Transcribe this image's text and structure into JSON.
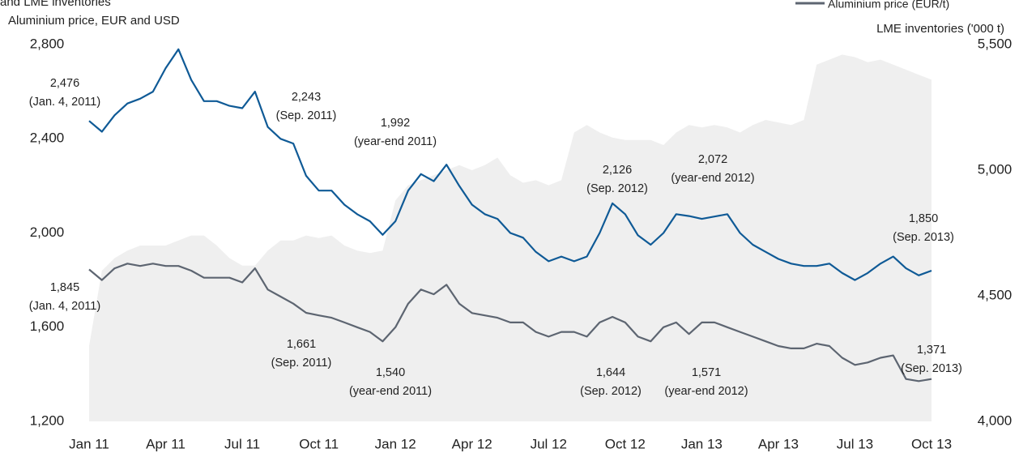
{
  "chart_data": {
    "type": "line",
    "title": "and LME inventories",
    "y_label": "Aluminium price, EUR and USD",
    "y2_label": "LME inventories ('000 t)",
    "categories": [
      "Jan 11",
      null,
      null,
      null,
      null,
      null,
      "Apr 11",
      null,
      null,
      null,
      null,
      null,
      "Jul 11",
      null,
      null,
      null,
      null,
      null,
      "Oct 11",
      null,
      null,
      null,
      null,
      null,
      "Jan 12",
      null,
      null,
      null,
      null,
      null,
      "Apr 12",
      null,
      null,
      null,
      null,
      null,
      "Jul 12",
      null,
      null,
      null,
      null,
      null,
      "Oct 12",
      null,
      null,
      null,
      null,
      null,
      "Jan 13",
      null,
      null,
      null,
      null,
      null,
      "Apr 13",
      null,
      null,
      null,
      null,
      null,
      "Jul 13",
      null,
      null,
      null,
      null,
      null,
      "Oct 13"
    ],
    "ylim": [
      1200,
      2800
    ],
    "yticks": [
      {
        "value": 1200,
        "label": "1,200"
      },
      {
        "value": 1600,
        "label": "1,600"
      },
      {
        "value": 2000,
        "label": "2,000"
      },
      {
        "value": 2400,
        "label": "2,400"
      },
      {
        "value": 2800,
        "label": "2,800"
      }
    ],
    "y2lim": [
      4000,
      5500
    ],
    "y2ticks": [
      {
        "value": 4000,
        "label": "4,000"
      },
      {
        "value": 4500,
        "label": "4,500"
      },
      {
        "value": 5000,
        "label": "5,000"
      },
      {
        "value": 5500,
        "label": "5,500"
      }
    ],
    "series": [
      {
        "type": "area",
        "axis": "y2",
        "color": "#efefef",
        "values": [
          4300,
          4600,
          4650,
          4680,
          4700,
          4700,
          4700,
          4720,
          4740,
          4740,
          4700,
          4650,
          4620,
          4620,
          4680,
          4720,
          4720,
          4740,
          4730,
          4740,
          4700,
          4680,
          4670,
          4680,
          4880,
          4940,
          4960,
          4980,
          5000,
          5020,
          5000,
          5020,
          5050,
          4980,
          4950,
          4960,
          4940,
          4960,
          5150,
          5180,
          5150,
          5130,
          5120,
          5120,
          5120,
          5100,
          5150,
          5180,
          5170,
          5180,
          5170,
          5150,
          5180,
          5200,
          5190,
          5180,
          5200,
          5420,
          5440,
          5460,
          5450,
          5430,
          5440,
          5420,
          5400,
          5380,
          5360
        ]
      },
      {
        "name": "Aluminium price (EUR/t)",
        "color": "#5d6571",
        "values": [
          1845,
          1800,
          1850,
          1870,
          1860,
          1870,
          1860,
          1860,
          1840,
          1810,
          1810,
          1810,
          1790,
          1850,
          1760,
          1730,
          1700,
          1661,
          1650,
          1640,
          1620,
          1600,
          1580,
          1540,
          1600,
          1700,
          1760,
          1740,
          1780,
          1700,
          1660,
          1650,
          1640,
          1620,
          1620,
          1580,
          1560,
          1580,
          1580,
          1560,
          1620,
          1644,
          1620,
          1560,
          1540,
          1600,
          1620,
          1571,
          1620,
          1620,
          1600,
          1580,
          1560,
          1540,
          1520,
          1510,
          1510,
          1530,
          1520,
          1470,
          1440,
          1450,
          1470,
          1480,
          1380,
          1371,
          1380
        ]
      },
      {
        "color": "#0f5a96",
        "values": [
          2476,
          2430,
          2500,
          2550,
          2570,
          2600,
          2700,
          2780,
          2650,
          2560,
          2560,
          2540,
          2530,
          2600,
          2450,
          2400,
          2380,
          2243,
          2180,
          2180,
          2120,
          2080,
          2050,
          1992,
          2050,
          2180,
          2250,
          2220,
          2290,
          2200,
          2120,
          2080,
          2060,
          2000,
          1980,
          1920,
          1880,
          1900,
          1880,
          1900,
          2000,
          2126,
          2080,
          1990,
          1950,
          2000,
          2080,
          2072,
          2060,
          2070,
          2080,
          2000,
          1950,
          1920,
          1890,
          1870,
          1860,
          1860,
          1870,
          1830,
          1800,
          1830,
          1870,
          1900,
          1850,
          1820,
          1840
        ]
      }
    ],
    "legend": "top-right",
    "annotations": [
      [
        "2,476",
        "(Jan. 4, 2011)"
      ],
      [
        "2,243",
        "(Sep. 2011)"
      ],
      [
        "1,992",
        "(year-end 2011)"
      ],
      [
        "2,126",
        "(Sep. 2012)"
      ],
      [
        "2,072",
        "(year-end 2012)"
      ],
      [
        "1,850",
        "(Sep. 2013)"
      ],
      [
        "1,845",
        "(Jan. 4, 2011)"
      ],
      [
        "1,661",
        "(Sep. 2011)"
      ],
      [
        "1,540",
        "(year-end 2011)"
      ],
      [
        "1,644",
        "(Sep. 2012)"
      ],
      [
        "1,571",
        "(year-end 2012)"
      ],
      [
        "1,371",
        "(Sep. 2013)"
      ]
    ]
  }
}
